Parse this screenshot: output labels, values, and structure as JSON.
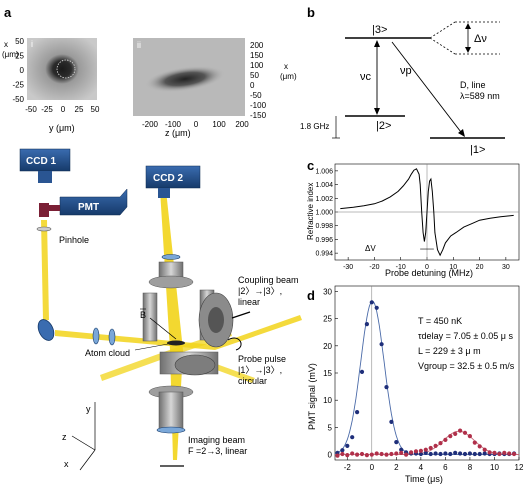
{
  "panels": {
    "a": "a",
    "b": "b",
    "c": "c",
    "d": "d",
    "i": "i",
    "ii": "ii"
  },
  "panel_a": {
    "inset_i": {
      "ylabel": "x\n(μm)",
      "ytick_labels": [
        "50",
        "25",
        "0",
        "-25",
        "-50"
      ],
      "xtick_labels": [
        "-50",
        "-25",
        "0",
        "25",
        "50"
      ],
      "xlabel": "y (μm)"
    },
    "inset_ii": {
      "ytick_labels": [
        "200",
        "150",
        "100",
        "50",
        "0",
        "-50",
        "-100",
        "-150"
      ],
      "ylabel": "x\n(μm)",
      "xtick_labels": [
        "-200",
        "-100",
        "0",
        "100",
        "200"
      ],
      "xlabel": "z (μm)"
    },
    "labels": {
      "ccd1": "CCD 1",
      "ccd2": "CCD 2",
      "pmt": "PMT",
      "pinhole": "Pinhole",
      "coupling_beam": [
        "Coupling beam",
        "|2〉→|3〉,",
        "linear"
      ],
      "b_field": "B",
      "atom_cloud": "Atom cloud",
      "probe_pulse": [
        "Probe pulse",
        "|1〉→|3〉,",
        "circular"
      ],
      "imaging_beam": [
        "Imaging beam",
        "F =2→3, linear"
      ],
      "axes": {
        "y": "y",
        "z": "z",
        "x": "x"
      }
    },
    "colors": {
      "beam": "#f2d41a",
      "device": "#1f4f8c",
      "metal": "#8b8b8b"
    }
  },
  "panel_b": {
    "levels": {
      "top": "|3>",
      "middle": "|2>",
      "bottom": "|1>"
    },
    "nu_c": "νc",
    "nu_p": "νp",
    "delta_nu": "Δν",
    "line_info": [
      "D, line",
      "λ=589 nm"
    ],
    "splitting": "1.8 GHz"
  },
  "chart_data": [
    {
      "type": "line",
      "panel": "c",
      "xlabel": "Probe detuning (MHz)",
      "ylabel": "Refractive index",
      "xlim": [
        -35,
        35
      ],
      "ylim": [
        0.993,
        1.007
      ],
      "xtick_labels": [
        "-30",
        "-20",
        "-10",
        "0",
        "10",
        "20",
        "30"
      ],
      "ytick_labels": [
        "1.006",
        "1.004",
        "1.002",
        "1.000",
        "0.998",
        "0.996",
        "0.994"
      ],
      "annotation": "ΔV",
      "series": [
        {
          "x": [
            -33,
            -28,
            -24,
            -20,
            -17,
            -14,
            -11,
            -9,
            -7,
            -6,
            -5,
            -4,
            -3,
            -2.6,
            -2,
            -1.5,
            -1,
            -0.5,
            0,
            0.5,
            1,
            1.5,
            2,
            2.6,
            3,
            4,
            5,
            6,
            7,
            9,
            11,
            14,
            17,
            20,
            24,
            28,
            33
          ],
          "y": [
            1.0005,
            1.0007,
            1.0009,
            1.0012,
            1.0016,
            1.0022,
            1.003,
            1.0038,
            1.0048,
            1.0055,
            1.0061,
            1.0063,
            1.0055,
            1.004,
            1.0,
            0.997,
            0.9957,
            0.997,
            1.0,
            1.003,
            1.0045,
            1.0048,
            1.003,
            1.0,
            0.997,
            0.9945,
            0.9937,
            0.9945,
            0.9955,
            0.9965,
            0.997,
            0.9978,
            0.9983,
            0.9988,
            0.9991,
            0.9993,
            0.9995
          ]
        }
      ]
    },
    {
      "type": "scatter",
      "panel": "d",
      "xlabel": "Time (μs)",
      "ylabel": "PMT signal (mV)",
      "xlim": [
        -3,
        12
      ],
      "ylim": [
        -1,
        31
      ],
      "xtick_labels": [
        "-2",
        "0",
        "2",
        "4",
        "6",
        "8",
        "10",
        "12"
      ],
      "ytick_labels": [
        "30",
        "25",
        "20",
        "15",
        "10",
        "5",
        "0"
      ],
      "annotations": [
        "T = 450 nK",
        "τdelay = 7.05 ± 0.05 μ s",
        "L = 229 ± 3 μ m",
        "Vgroup = 32.5 ± 0.5 m/s"
      ],
      "series": [
        {
          "color": "#1f2f7a",
          "x": [
            -2.8,
            -2.4,
            -2.0,
            -1.6,
            -1.2,
            -0.8,
            -0.4,
            0,
            0.4,
            0.8,
            1.2,
            1.6,
            2.0,
            2.4,
            2.8,
            3.2,
            3.6,
            4.0,
            4.4,
            4.8,
            5.2,
            5.6,
            6.0,
            6.4,
            6.8,
            7.2,
            7.6,
            8.0,
            8.4,
            8.8,
            9.2,
            9.6,
            10.0,
            10.4,
            10.8,
            11.2,
            11.6
          ],
          "y": [
            0.3,
            0.8,
            1.6,
            3.2,
            7.8,
            15.2,
            24.0,
            28.0,
            27.0,
            20.3,
            12.4,
            6.0,
            2.3,
            0.9,
            0.4,
            0.2,
            0.2,
            0.1,
            0.3,
            0.1,
            0.2,
            0.1,
            0.2,
            0.1,
            0.3,
            0.2,
            0.1,
            0.2,
            0.1,
            0.1,
            0.2,
            0.1,
            0.1,
            0.2,
            0.1,
            0.1,
            0.2
          ]
        },
        {
          "color": "#b0304a",
          "x": [
            -2.8,
            -2.4,
            -2.0,
            -1.6,
            -1.2,
            -0.8,
            -0.4,
            0,
            0.4,
            0.8,
            1.2,
            1.6,
            2.0,
            2.4,
            2.8,
            3.2,
            3.6,
            4.0,
            4.4,
            4.8,
            5.2,
            5.6,
            6.0,
            6.4,
            6.8,
            7.2,
            7.6,
            8.0,
            8.4,
            8.8,
            9.2,
            9.6,
            10.0,
            10.4,
            10.8,
            11.2,
            11.6
          ],
          "y": [
            -0.2,
            0.1,
            -0.1,
            0.2,
            0.0,
            0.1,
            -0.1,
            0.0,
            0.2,
            0.1,
            0.0,
            0.1,
            0.2,
            0.3,
            0.0,
            0.4,
            0.6,
            0.7,
            0.9,
            1.2,
            1.6,
            2.1,
            2.7,
            3.4,
            3.8,
            4.4,
            4.0,
            3.4,
            2.2,
            1.5,
            0.9,
            0.4,
            0.3,
            0.1,
            0.3,
            0.2,
            0.1
          ]
        }
      ],
      "fits": [
        {
          "color": "#4a6aa8",
          "center": 0.05,
          "sigma": 0.95,
          "amp": 28.2
        },
        {
          "color": "#c46a7a",
          "center": 7.1,
          "sigma": 1.25,
          "amp": 4.3
        }
      ]
    }
  ]
}
